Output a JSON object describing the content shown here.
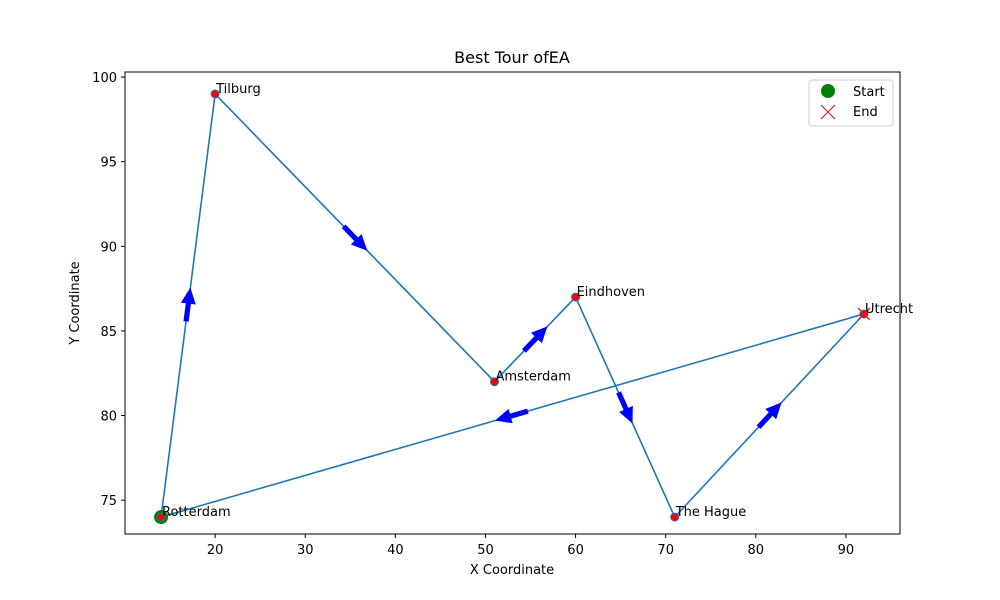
{
  "chart_data": {
    "type": "line",
    "title": "Best Tour ofEA",
    "xlabel": "X Coordinate",
    "ylabel": "Y Coordinate",
    "xlim": [
      10,
      96
    ],
    "ylim": [
      73,
      100.3
    ],
    "xticks": [
      "20",
      "30",
      "40",
      "50",
      "60",
      "70",
      "80",
      "90"
    ],
    "yticks": [
      "75",
      "80",
      "85",
      "90",
      "95",
      "100"
    ],
    "grid": false,
    "legend": {
      "placement": "top-right",
      "entries": [
        {
          "label": "Start",
          "marker": "circle",
          "color": "#008000"
        },
        {
          "label": "End",
          "marker": "x",
          "color": "#d62728"
        }
      ]
    },
    "colors": {
      "path": "#1f77b4",
      "arrow": "#0000ff",
      "city": "#ff0000",
      "start": "#008000",
      "end": "#d62728"
    },
    "cities": [
      {
        "name": "Rotterdam",
        "x": 14,
        "y": 74
      },
      {
        "name": "Tilburg",
        "x": 20,
        "y": 99
      },
      {
        "name": "Amsterdam",
        "x": 51,
        "y": 82
      },
      {
        "name": "Eindhoven",
        "x": 60,
        "y": 87
      },
      {
        "name": "The Hague",
        "x": 71,
        "y": 74
      },
      {
        "name": "Utrecht",
        "x": 92,
        "y": 86
      }
    ],
    "tour": [
      "Rotterdam",
      "Tilburg",
      "Amsterdam",
      "Eindhoven",
      "The Hague",
      "Utrecht",
      "Rotterdam"
    ],
    "start": "Rotterdam",
    "end": "Utrecht"
  }
}
